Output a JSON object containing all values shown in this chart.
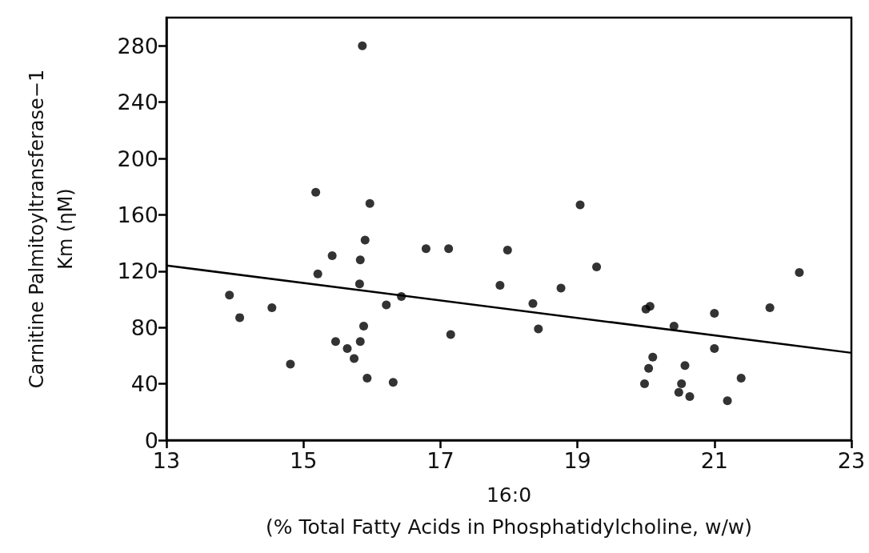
{
  "chart_data": {
    "type": "scatter",
    "xlabel": "16:0\n(% Total Fatty Acids in Phosphatidylcholine, w/w)",
    "ylabel": "Carnitine Palmitoyltransferase−1\nKm (ηM)",
    "xlim": [
      13,
      23
    ],
    "xticks": [
      13,
      15,
      17,
      19,
      21,
      23
    ],
    "ylim": [
      0,
      300
    ],
    "yticks": [
      0,
      40,
      80,
      120,
      160,
      200,
      240,
      280
    ],
    "grid": false,
    "marker": "circle",
    "series": [
      {
        "color": "#000000",
        "x": [
          15.86,
          15.18,
          15.97,
          15.9,
          15.42,
          15.83,
          15.21,
          15.82,
          16.79,
          17.12,
          17.98,
          17.87,
          13.92,
          14.54,
          14.07,
          16.43,
          16.21,
          15.88,
          17.15,
          15.47,
          15.83,
          15.64,
          15.74,
          14.81,
          15.93,
          16.31,
          19.04,
          19.28,
          18.76,
          18.35,
          18.43,
          20.0,
          20.06,
          20.41,
          21.0,
          21.81,
          22.24,
          21.0,
          20.1,
          20.04,
          19.98,
          20.57,
          20.52,
          20.48,
          20.64,
          21.19,
          21.39
        ],
        "values": [
          280,
          176,
          168,
          142,
          131,
          128,
          118,
          111,
          136,
          136,
          135,
          110,
          103,
          94,
          87,
          102,
          96,
          81,
          75,
          70,
          70,
          65,
          58,
          54,
          44,
          41,
          167,
          123,
          108,
          97,
          79,
          93,
          95,
          81,
          90,
          94,
          119,
          65,
          59,
          51,
          40,
          53,
          40,
          34,
          31,
          28,
          44
        ]
      },
      {
        "type": "line",
        "color": "#000000",
        "marker": "none",
        "line_style": "solid",
        "x": [
          13,
          23
        ],
        "values": [
          124,
          62
        ]
      }
    ]
  }
}
